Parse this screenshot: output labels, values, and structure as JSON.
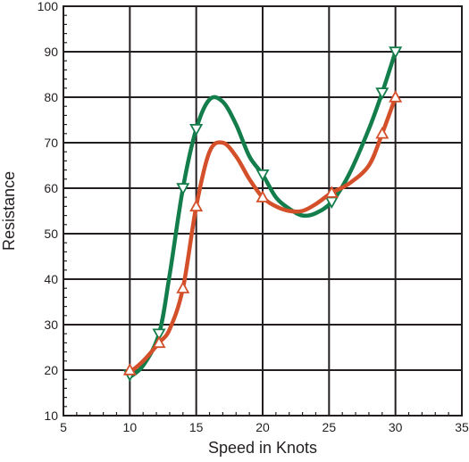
{
  "chart_data": {
    "type": "line",
    "xlabel": "Speed in Knots",
    "ylabel": "Resistance",
    "xlim": [
      5,
      35
    ],
    "ylim": [
      10,
      100
    ],
    "x_ticks": [
      5,
      10,
      15,
      20,
      25,
      30,
      35
    ],
    "y_ticks": [
      10,
      20,
      30,
      40,
      50,
      60,
      70,
      80,
      90,
      100
    ],
    "grid": true,
    "legend": "none",
    "series": [
      {
        "color": "#137d4b",
        "marker": "triangle-down",
        "points": [
          [
            10,
            19
          ],
          [
            12.2,
            28
          ],
          [
            14,
            60
          ],
          [
            15,
            73
          ],
          [
            20,
            63
          ],
          [
            25.2,
            57
          ],
          [
            29,
            81
          ],
          [
            30,
            90
          ]
        ],
        "curve": [
          [
            10,
            18.5
          ],
          [
            11,
            21
          ],
          [
            12.2,
            28
          ],
          [
            13,
            41
          ],
          [
            14,
            60
          ],
          [
            15,
            73
          ],
          [
            16,
            79.5
          ],
          [
            17,
            79
          ],
          [
            18,
            74
          ],
          [
            19,
            67
          ],
          [
            20,
            63
          ],
          [
            21,
            58
          ],
          [
            22,
            55.5
          ],
          [
            23,
            54
          ],
          [
            24,
            54.5
          ],
          [
            25.2,
            57
          ],
          [
            26.5,
            63
          ],
          [
            28,
            73
          ],
          [
            29,
            81
          ],
          [
            30,
            90
          ]
        ]
      },
      {
        "color": "#d4502a",
        "marker": "triangle-up",
        "points": [
          [
            10,
            20
          ],
          [
            12.2,
            26
          ],
          [
            14,
            38
          ],
          [
            15,
            56
          ],
          [
            20,
            58
          ],
          [
            25.2,
            59
          ],
          [
            29,
            72
          ],
          [
            30,
            80
          ]
        ],
        "curve": [
          [
            10,
            19.5
          ],
          [
            11,
            22
          ],
          [
            12.2,
            26
          ],
          [
            13,
            29
          ],
          [
            14,
            38
          ],
          [
            15,
            56
          ],
          [
            16,
            68
          ],
          [
            17,
            70
          ],
          [
            18,
            67
          ],
          [
            19,
            62
          ],
          [
            20,
            58
          ],
          [
            21,
            56
          ],
          [
            22,
            55
          ],
          [
            23,
            55
          ],
          [
            24,
            56.5
          ],
          [
            25.2,
            59
          ],
          [
            26.5,
            61
          ],
          [
            28,
            65
          ],
          [
            29,
            72
          ],
          [
            30,
            80
          ]
        ]
      }
    ]
  }
}
